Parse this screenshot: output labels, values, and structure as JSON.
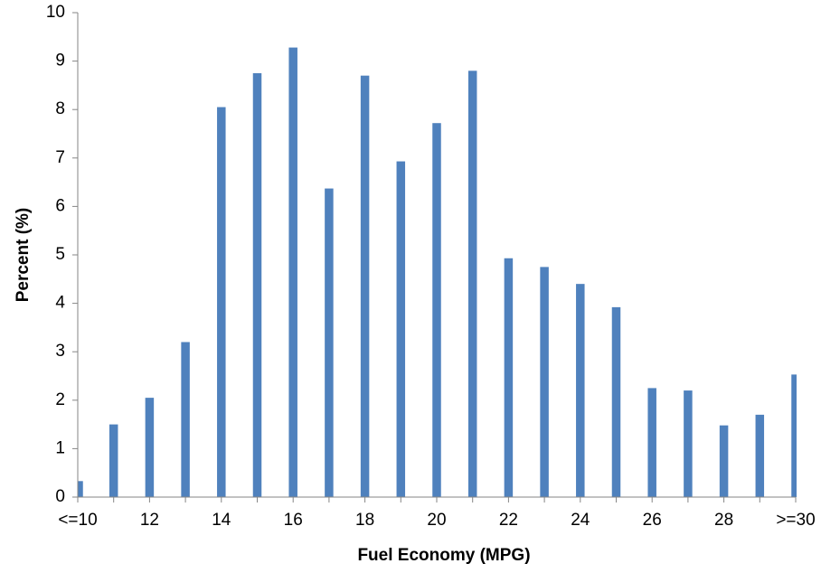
{
  "chart_data": {
    "type": "bar",
    "title": "",
    "xlabel": "Fuel Economy (MPG)",
    "ylabel": "Percent (%)",
    "ylim": [
      0,
      10
    ],
    "y_ticks": [
      0,
      1,
      2,
      3,
      4,
      5,
      6,
      7,
      8,
      9,
      10
    ],
    "categories": [
      "<=10",
      "11",
      "12",
      "13",
      "14",
      "15",
      "16",
      "17",
      "18",
      "19",
      "20",
      "21",
      "22",
      "23",
      "24",
      "25",
      "26",
      "27",
      "28",
      "29",
      ">=30"
    ],
    "x_tick_labels": [
      "<=10",
      "12",
      "14",
      "16",
      "18",
      "20",
      "22",
      "24",
      "26",
      "28",
      ">=30"
    ],
    "values": [
      0.33,
      1.5,
      2.05,
      3.2,
      8.05,
      8.75,
      9.28,
      6.37,
      8.7,
      6.93,
      7.72,
      8.8,
      4.93,
      4.75,
      4.4,
      3.92,
      2.25,
      2.2,
      1.48,
      1.7,
      2.53
    ],
    "bar_color": "#4f81bd",
    "axis_color": "#868686",
    "grid": false,
    "legend": "none"
  }
}
